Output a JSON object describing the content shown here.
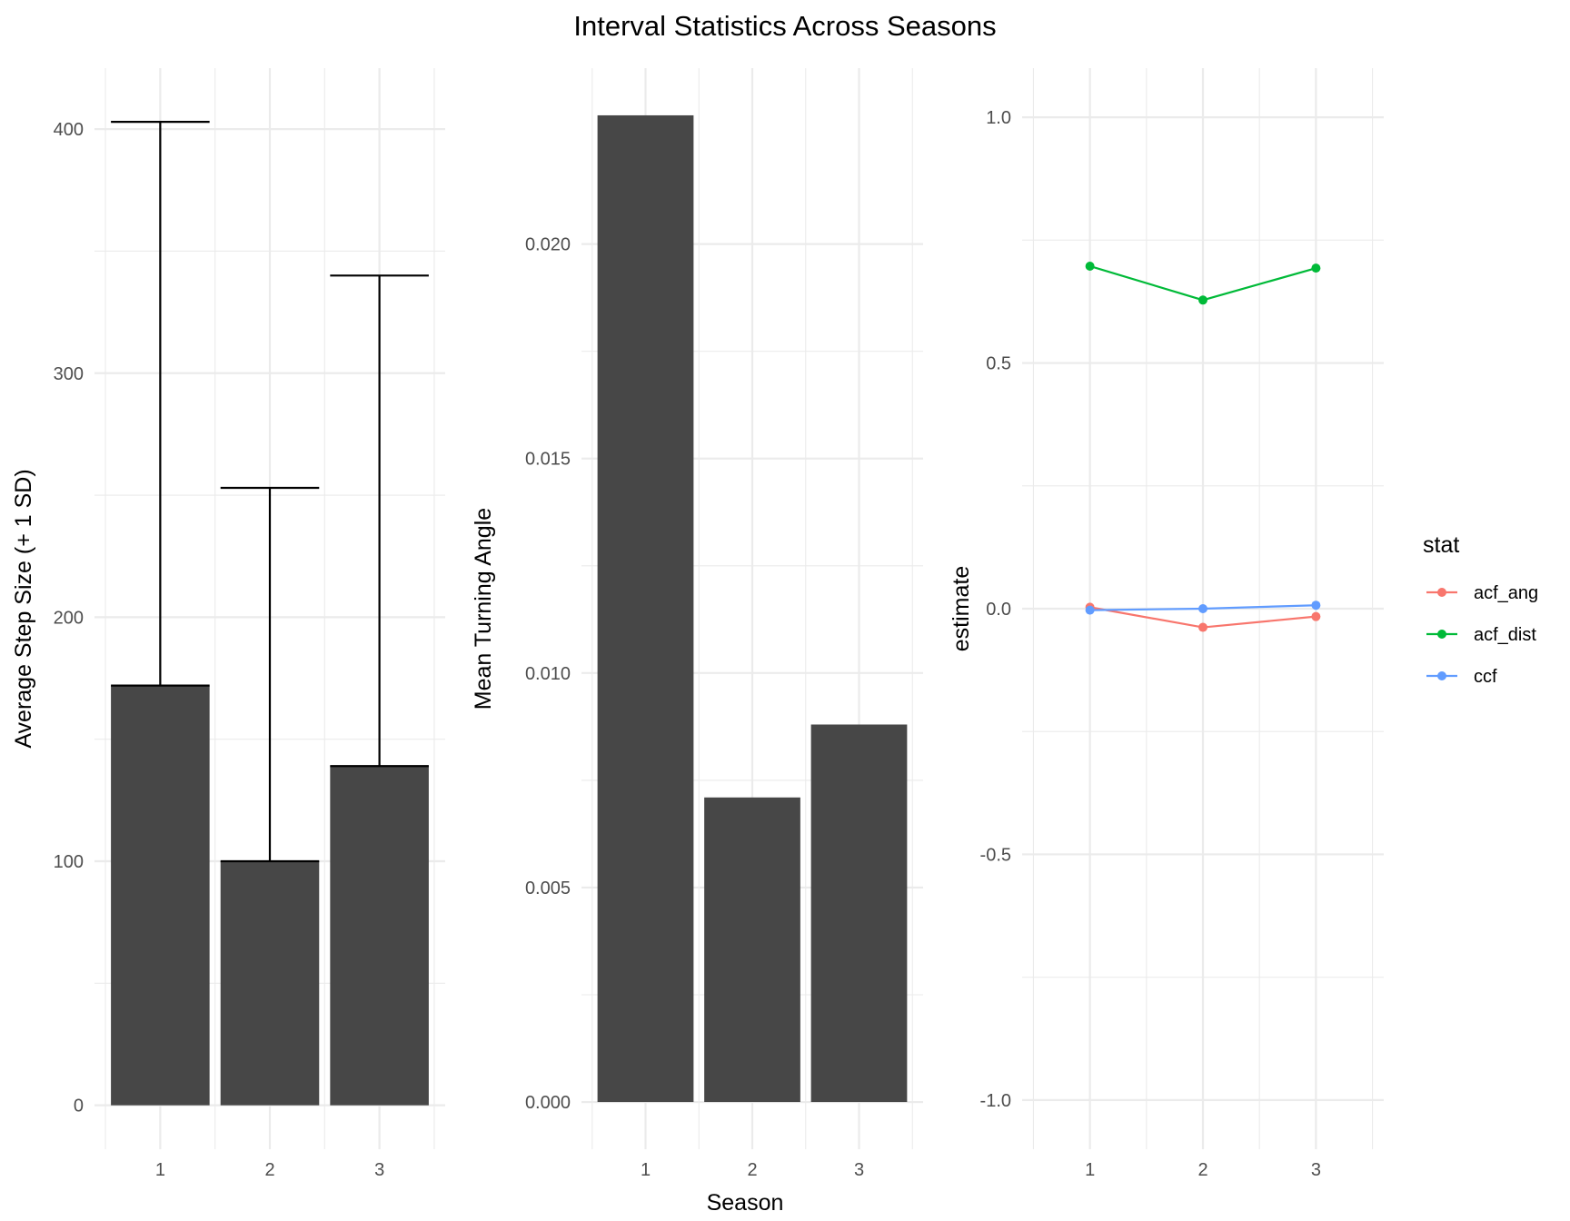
{
  "title": "Interval Statistics Across Seasons",
  "x_title": "Season",
  "chart_data": [
    {
      "type": "bar",
      "categories": [
        "1",
        "2",
        "3"
      ],
      "values": [
        172,
        100,
        139
      ],
      "error_upper": [
        403,
        253,
        340
      ],
      "xlabel": "",
      "ylabel": "Average Step Size (+ 1 SD)",
      "ylim": [
        -18,
        425
      ],
      "yticks": [
        0,
        100,
        200,
        300,
        400
      ],
      "ytick_labels": [
        "0",
        "100",
        "200",
        "300",
        "400"
      ],
      "bar_color": "#474747",
      "grid": true
    },
    {
      "type": "bar",
      "categories": [
        "1",
        "2",
        "3"
      ],
      "values": [
        0.023,
        0.0071,
        0.0088
      ],
      "xlabel": "",
      "ylabel": "Mean Turning Angle",
      "ylim": [
        -0.0011,
        0.0241
      ],
      "yticks": [
        0,
        0.005,
        0.01,
        0.015,
        0.02
      ],
      "ytick_labels": [
        "0.000",
        "0.005",
        "0.010",
        "0.015",
        "0.020"
      ],
      "bar_color": "#474747",
      "grid": true
    },
    {
      "type": "line",
      "categories": [
        "1",
        "2",
        "3"
      ],
      "xlabel": "",
      "ylabel": "estimate",
      "ylim": [
        -1.1,
        1.1
      ],
      "yticks": [
        -1,
        -0.5,
        0,
        0.5,
        1
      ],
      "ytick_labels": [
        "-1.0",
        "-0.5",
        "0.0",
        "0.5",
        "1.0"
      ],
      "grid": true,
      "legend": {
        "title": "stat",
        "placement": "right"
      },
      "series": [
        {
          "name": "acf_ang",
          "values": [
            0.003,
            -0.038,
            -0.016
          ],
          "color": "#F8766D"
        },
        {
          "name": "acf_dist",
          "values": [
            0.697,
            0.628,
            0.693
          ],
          "color": "#00BA38"
        },
        {
          "name": "ccf",
          "values": [
            -0.003,
            0.0,
            0.007
          ],
          "color": "#619CFF"
        }
      ]
    }
  ]
}
